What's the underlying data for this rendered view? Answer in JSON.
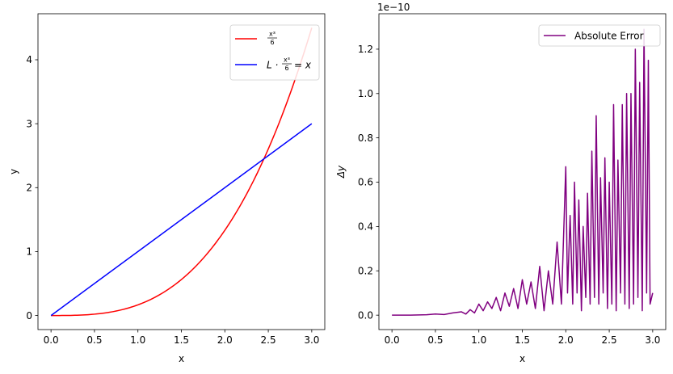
{
  "chart_data": [
    {
      "type": "line",
      "title": "",
      "xlabel": "x",
      "ylabel": "y",
      "xlim": [
        -0.15,
        3.15
      ],
      "ylim": [
        -0.22,
        4.72
      ],
      "xticks": [
        "0.0",
        "0.5",
        "1.0",
        "1.5",
        "2.0",
        "2.5",
        "3.0"
      ],
      "yticks": [
        "0",
        "1",
        "2",
        "3",
        "4"
      ],
      "legend_position": "top-right",
      "grid": false,
      "series": [
        {
          "name": "x³/6",
          "legend_numerator": "x³",
          "legend_denominator": "6",
          "color": "#ff0000",
          "x": [
            0,
            0.25,
            0.5,
            0.75,
            1.0,
            1.25,
            1.5,
            1.75,
            2.0,
            2.25,
            2.5,
            2.75,
            3.0
          ],
          "y": [
            0,
            0.0026,
            0.0208,
            0.0703,
            0.1667,
            0.3255,
            0.5625,
            0.8932,
            1.3333,
            1.8984,
            2.6042,
            3.4661,
            4.5
          ]
        },
        {
          "name": "L·x³/6 = x",
          "legend_prefix": "L ·",
          "legend_numerator": "x³",
          "legend_denominator": "6",
          "legend_suffix": "= x",
          "color": "#0000ff",
          "x": [
            0,
            3.0
          ],
          "y": [
            0,
            3.0
          ]
        }
      ]
    },
    {
      "type": "line",
      "title": "",
      "xlabel": "x",
      "ylabel": "Δy",
      "offset_text": "1e−10",
      "xlim": [
        -0.15,
        3.15
      ],
      "ylim": [
        -0.065,
        1.36
      ],
      "xticks": [
        "0.0",
        "0.5",
        "1.0",
        "1.5",
        "2.0",
        "2.5",
        "3.0"
      ],
      "yticks": [
        "0.0",
        "0.2",
        "0.4",
        "0.6",
        "0.8",
        "1.0",
        "1.2"
      ],
      "legend_position": "top-right",
      "grid": false,
      "series": [
        {
          "name": "Absolute Error",
          "color": "#800080",
          "x": [
            0.0,
            0.2,
            0.4,
            0.5,
            0.6,
            0.7,
            0.8,
            0.85,
            0.9,
            0.95,
            1.0,
            1.05,
            1.1,
            1.15,
            1.2,
            1.25,
            1.3,
            1.35,
            1.4,
            1.45,
            1.5,
            1.55,
            1.6,
            1.65,
            1.7,
            1.75,
            1.8,
            1.85,
            1.9,
            1.95,
            2.0,
            2.02,
            2.05,
            2.08,
            2.1,
            2.13,
            2.15,
            2.18,
            2.2,
            2.23,
            2.25,
            2.28,
            2.3,
            2.33,
            2.35,
            2.38,
            2.4,
            2.43,
            2.45,
            2.48,
            2.5,
            2.53,
            2.55,
            2.58,
            2.6,
            2.63,
            2.65,
            2.68,
            2.7,
            2.73,
            2.75,
            2.78,
            2.8,
            2.83,
            2.85,
            2.88,
            2.9,
            2.93,
            2.95,
            2.97,
            3.0
          ],
          "y": [
            0.0,
            0.0,
            0.002,
            0.005,
            0.003,
            0.01,
            0.015,
            0.005,
            0.025,
            0.01,
            0.05,
            0.02,
            0.06,
            0.03,
            0.08,
            0.02,
            0.1,
            0.04,
            0.12,
            0.03,
            0.16,
            0.05,
            0.15,
            0.03,
            0.22,
            0.02,
            0.2,
            0.05,
            0.33,
            0.05,
            0.67,
            0.1,
            0.45,
            0.05,
            0.6,
            0.1,
            0.52,
            0.02,
            0.4,
            0.08,
            0.55,
            0.05,
            0.74,
            0.08,
            0.9,
            0.05,
            0.62,
            0.1,
            0.71,
            0.03,
            0.6,
            0.05,
            0.95,
            0.02,
            0.7,
            0.1,
            0.95,
            0.05,
            1.0,
            0.03,
            1.0,
            0.05,
            1.2,
            0.08,
            1.05,
            0.02,
            1.29,
            0.1,
            1.15,
            0.05,
            0.1
          ]
        }
      ]
    }
  ]
}
